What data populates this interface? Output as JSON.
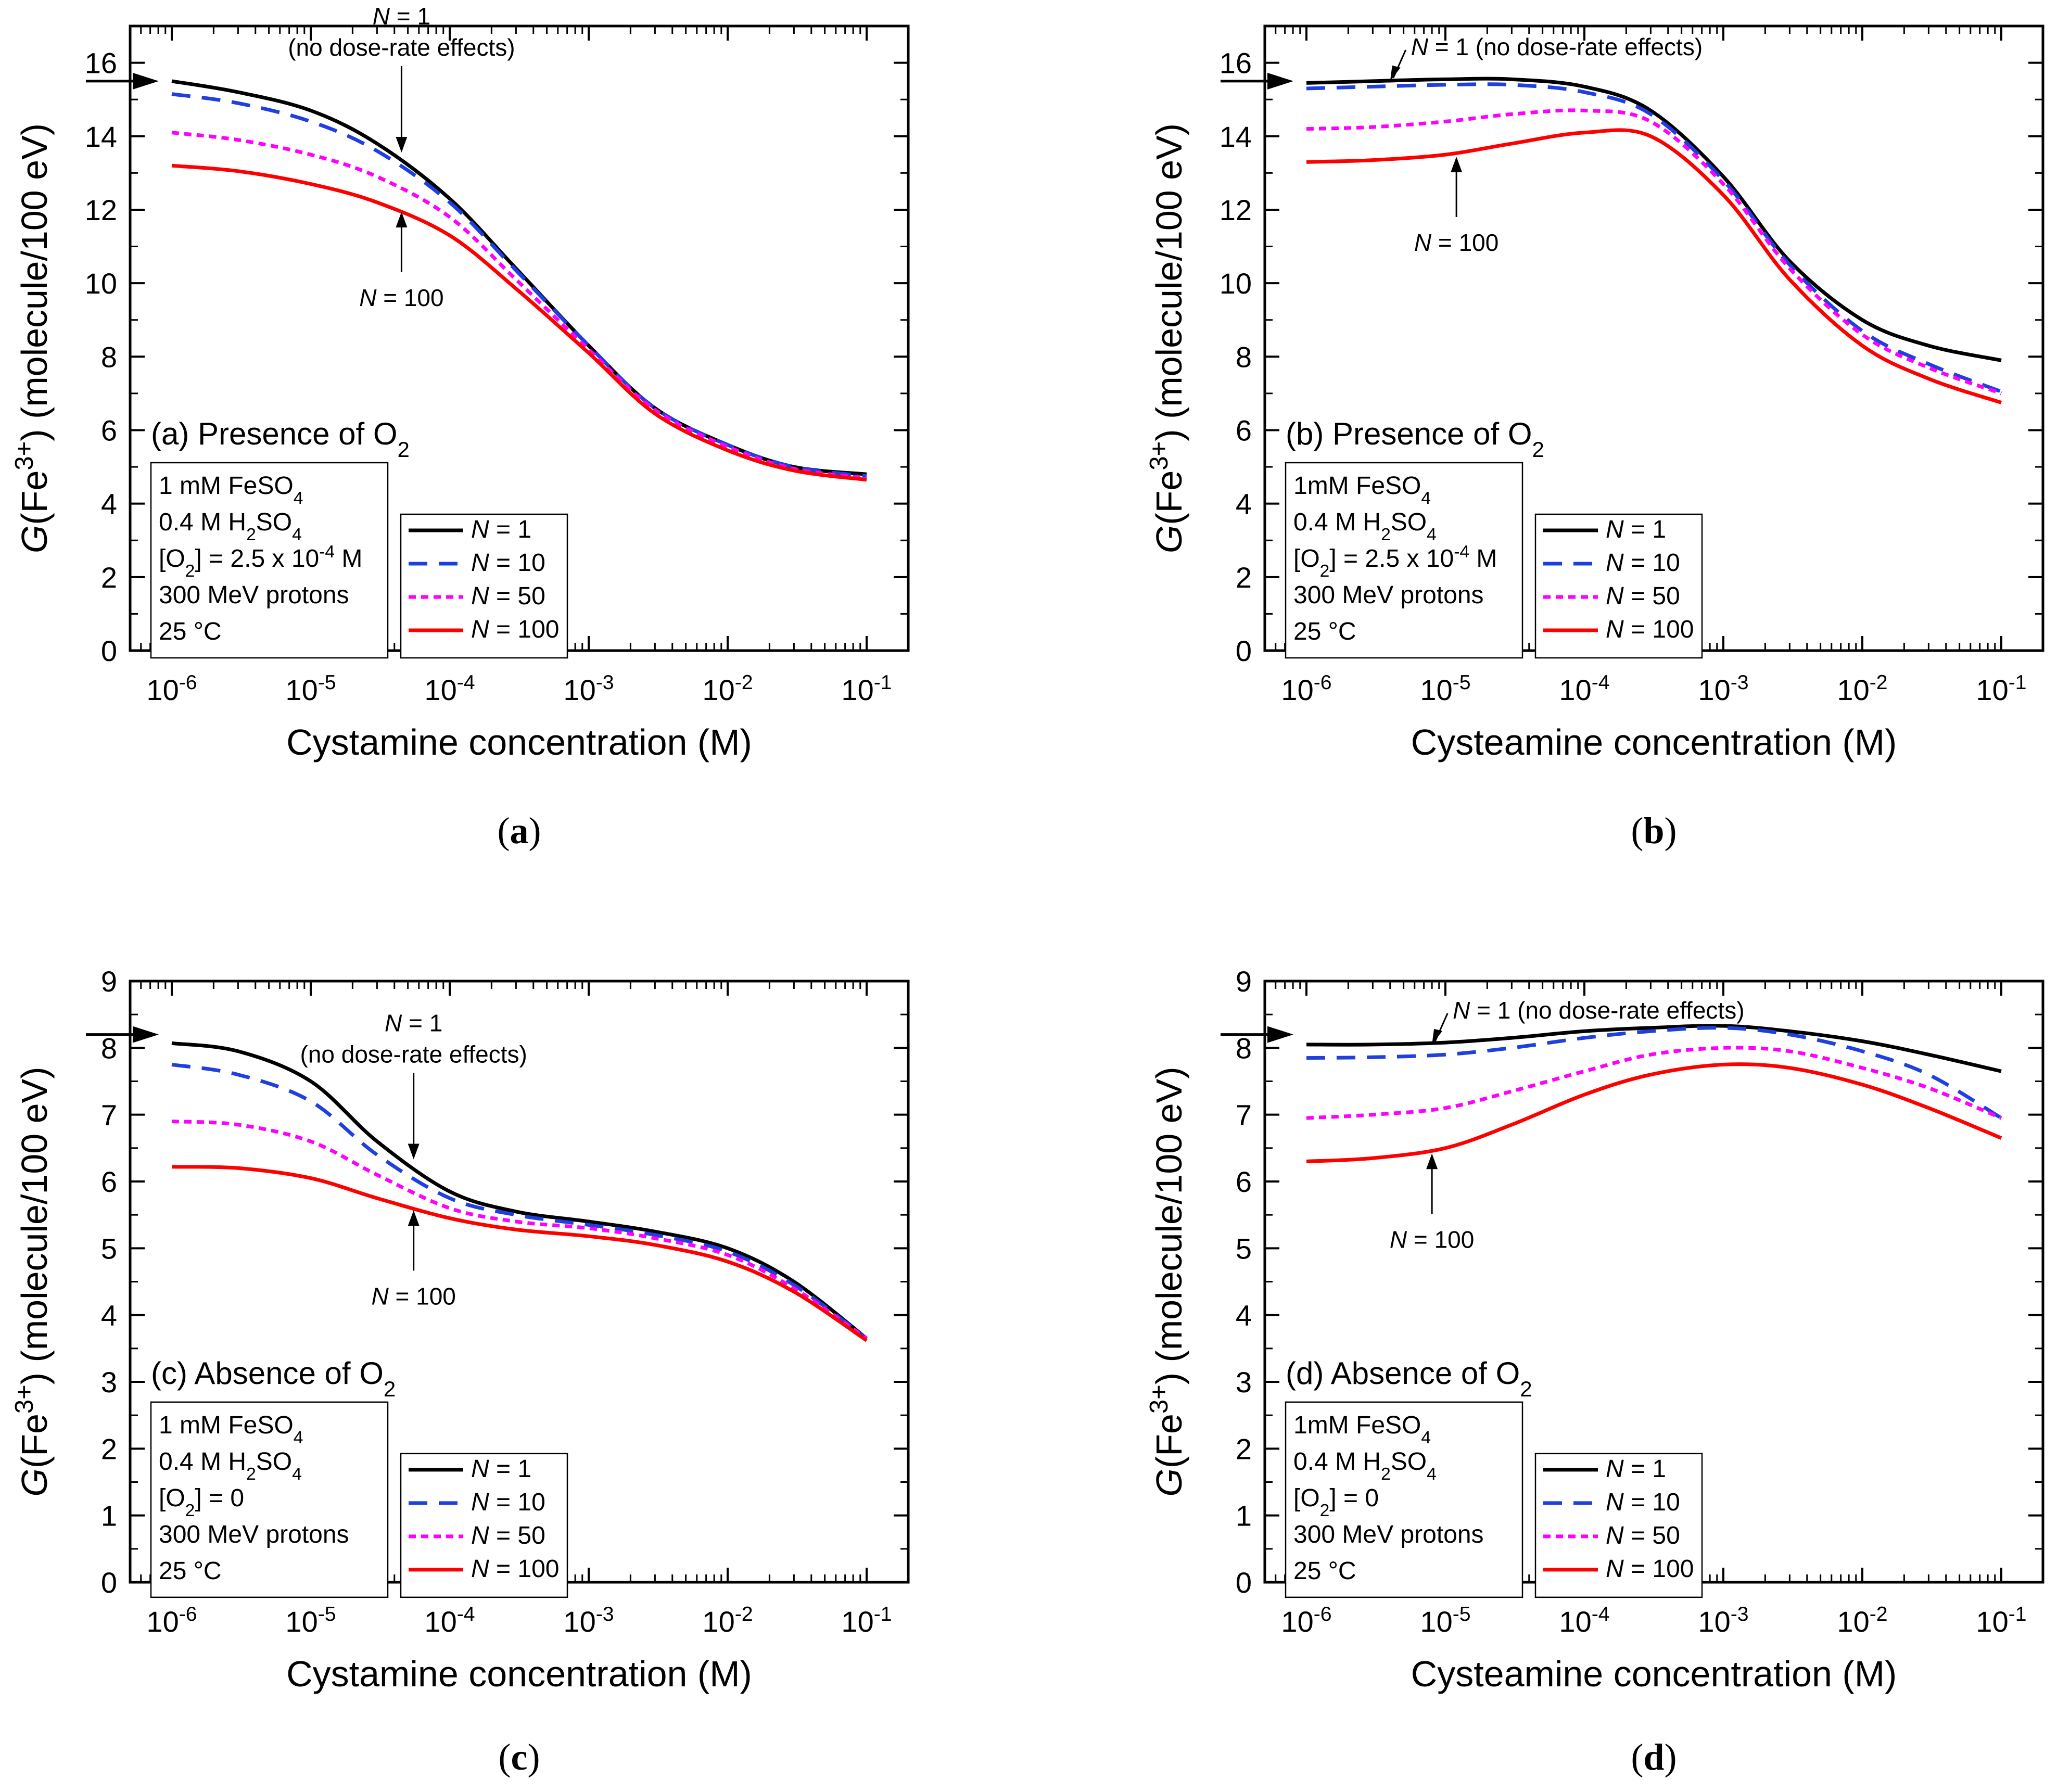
{
  "panels": [
    {
      "id": "a",
      "chart_data": {
        "type": "line",
        "xscale": "log",
        "xlim": [
          1e-06,
          0.1
        ],
        "ylim": [
          0,
          17
        ],
        "yticks": [
          0,
          2,
          4,
          6,
          8,
          10,
          12,
          14,
          16
        ],
        "xlabel": "Cystamine concentration (M)",
        "ylabel": "G(Fe3+) (molecule/100 eV)",
        "caption": "a",
        "panel_label": "(a) Presence of O2",
        "conditions": [
          "1 mM FeSO4",
          "0.4 M H2SO4",
          "[O2] = 2.5 x 10-4 M",
          "300 MeV protons",
          "25 °C"
        ],
        "reference_arrow_y": 15.5,
        "annotations": [
          {
            "text": "N = 1",
            "subtext": "(no dose-rate effects)",
            "x": 4.5e-05,
            "y": 13.5
          },
          {
            "text": "N = 100",
            "x": 4.5e-05,
            "y": 12.0
          }
        ],
        "series": [
          {
            "name": "N = 1",
            "color": "#000000",
            "dash": "solid",
            "x": [
              1e-06,
              3e-06,
              1e-05,
              3e-05,
              0.0001,
              0.0003,
              0.001,
              0.003,
              0.01,
              0.03,
              0.1
            ],
            "y": [
              15.5,
              15.2,
              14.7,
              13.8,
              12.3,
              10.4,
              8.3,
              6.6,
              5.6,
              5.0,
              4.8
            ]
          },
          {
            "name": "N = 10",
            "color": "#1f3fe0",
            "dash": "long",
            "x": [
              1e-06,
              3e-06,
              1e-05,
              3e-05,
              0.0001,
              0.0003,
              0.001,
              0.003,
              0.01,
              0.03,
              0.1
            ],
            "y": [
              15.15,
              14.9,
              14.4,
              13.6,
              12.2,
              10.35,
              8.3,
              6.6,
              5.6,
              5.0,
              4.75
            ]
          },
          {
            "name": "N = 50",
            "color": "#ff00ff",
            "dash": "short",
            "x": [
              1e-06,
              3e-06,
              1e-05,
              3e-05,
              0.0001,
              0.0003,
              0.001,
              0.003,
              0.01,
              0.03,
              0.1
            ],
            "y": [
              14.1,
              13.9,
              13.5,
              12.9,
              11.8,
              10.1,
              8.2,
              6.55,
              5.55,
              4.95,
              4.7
            ]
          },
          {
            "name": "N = 100",
            "color": "#ff0000",
            "dash": "solid",
            "x": [
              1e-06,
              3e-06,
              1e-05,
              3e-05,
              0.0001,
              0.0003,
              0.001,
              0.003,
              0.01,
              0.03,
              0.1
            ],
            "y": [
              13.2,
              13.05,
              12.7,
              12.2,
              11.3,
              9.85,
              8.1,
              6.45,
              5.45,
              4.9,
              4.65
            ]
          }
        ]
      }
    },
    {
      "id": "b",
      "chart_data": {
        "type": "line",
        "xscale": "log",
        "xlim": [
          1e-06,
          0.1
        ],
        "ylim": [
          0,
          17
        ],
        "yticks": [
          0,
          2,
          4,
          6,
          8,
          10,
          12,
          14,
          16
        ],
        "xlabel": "Cysteamine concentration (M)",
        "ylabel": "G(Fe3+) (molecule/100 eV)",
        "caption": "b",
        "panel_label": "(b) Presence of O2",
        "conditions": [
          "1mM FeSO4",
          "0.4 M H2SO4",
          "[O2] = 2.5 x 10-4 M",
          "300 MeV protons",
          "25 °C"
        ],
        "reference_arrow_y": 15.5,
        "annotations": [
          {
            "text": "N = 1 (no dose-rate effects)",
            "x": 4e-06,
            "y": 15.5
          },
          {
            "text": "N = 100",
            "x": 1.2e-05,
            "y": 13.5
          }
        ],
        "series": [
          {
            "name": "N = 1",
            "color": "#000000",
            "dash": "solid",
            "x": [
              1e-06,
              3e-06,
              1e-05,
              3e-05,
              0.0001,
              0.0003,
              0.001,
              0.003,
              0.01,
              0.03,
              0.1
            ],
            "y": [
              15.45,
              15.5,
              15.55,
              15.55,
              15.35,
              14.7,
              12.9,
              10.6,
              9.0,
              8.3,
              7.9
            ]
          },
          {
            "name": "N = 10",
            "color": "#1f3fe0",
            "dash": "long",
            "x": [
              1e-06,
              3e-06,
              1e-05,
              3e-05,
              0.0001,
              0.0003,
              0.001,
              0.003,
              0.01,
              0.03,
              0.1
            ],
            "y": [
              15.3,
              15.35,
              15.4,
              15.4,
              15.2,
              14.6,
              12.8,
              10.5,
              8.7,
              7.8,
              7.05
            ]
          },
          {
            "name": "N = 50",
            "color": "#ff00ff",
            "dash": "short",
            "x": [
              1e-06,
              3e-06,
              1e-05,
              3e-05,
              0.0001,
              0.0003,
              0.001,
              0.003,
              0.01,
              0.03,
              0.1
            ],
            "y": [
              14.2,
              14.25,
              14.4,
              14.6,
              14.7,
              14.4,
              12.7,
              10.4,
              8.6,
              7.7,
              7.0
            ]
          },
          {
            "name": "N = 100",
            "color": "#ff0000",
            "dash": "solid",
            "x": [
              1e-06,
              3e-06,
              1e-05,
              3e-05,
              0.0001,
              0.0003,
              0.001,
              0.003,
              0.01,
              0.03,
              0.1
            ],
            "y": [
              13.3,
              13.35,
              13.5,
              13.8,
              14.1,
              14.0,
              12.4,
              10.1,
              8.3,
              7.4,
              6.75
            ]
          }
        ]
      }
    },
    {
      "id": "c",
      "chart_data": {
        "type": "line",
        "xscale": "log",
        "xlim": [
          1e-06,
          0.1
        ],
        "ylim": [
          0,
          9
        ],
        "yticks": [
          0,
          1,
          2,
          3,
          4,
          5,
          6,
          7,
          8,
          9
        ],
        "xlabel": "Cystamine concentration (M)",
        "ylabel": "G(Fe3+) (molecule/100 eV)",
        "caption": "c",
        "panel_label": "(c) Absence of O2",
        "conditions": [
          "1 mM FeSO4",
          "0.4 M H2SO4",
          "[O2] = 0",
          "300 MeV protons",
          "25 °C"
        ],
        "reference_arrow_y": 8.2,
        "annotations": [
          {
            "text": "N = 1",
            "subtext": "(no dose-rate effects)",
            "x": 5.5e-05,
            "y": 6.3
          },
          {
            "text": "N = 100",
            "x": 5.5e-05,
            "y": 5.6
          }
        ],
        "series": [
          {
            "name": "N = 1",
            "color": "#000000",
            "dash": "solid",
            "x": [
              1e-06,
              3e-06,
              1e-05,
              3e-05,
              0.0001,
              0.0003,
              0.001,
              0.003,
              0.01,
              0.03,
              0.1
            ],
            "y": [
              8.07,
              7.95,
              7.5,
              6.6,
              5.85,
              5.55,
              5.4,
              5.25,
              5.0,
              4.5,
              3.65
            ]
          },
          {
            "name": "N = 10",
            "color": "#1f3fe0",
            "dash": "long",
            "x": [
              1e-06,
              3e-06,
              1e-05,
              3e-05,
              0.0001,
              0.0003,
              0.001,
              0.003,
              0.01,
              0.03,
              0.1
            ],
            "y": [
              7.75,
              7.6,
              7.2,
              6.4,
              5.75,
              5.5,
              5.35,
              5.2,
              4.95,
              4.45,
              3.65
            ]
          },
          {
            "name": "N = 50",
            "color": "#ff00ff",
            "dash": "short",
            "x": [
              1e-06,
              3e-06,
              1e-05,
              3e-05,
              0.0001,
              0.0003,
              0.001,
              0.003,
              0.01,
              0.03,
              0.1
            ],
            "y": [
              6.9,
              6.85,
              6.6,
              6.1,
              5.6,
              5.4,
              5.3,
              5.15,
              4.9,
              4.4,
              3.65
            ]
          },
          {
            "name": "N = 100",
            "color": "#ff0000",
            "dash": "solid",
            "x": [
              1e-06,
              3e-06,
              1e-05,
              3e-05,
              0.0001,
              0.0003,
              0.001,
              0.003,
              0.01,
              0.03,
              0.1
            ],
            "y": [
              6.22,
              6.2,
              6.05,
              5.75,
              5.45,
              5.28,
              5.18,
              5.05,
              4.8,
              4.35,
              3.62
            ]
          }
        ]
      }
    },
    {
      "id": "d",
      "chart_data": {
        "type": "line",
        "xscale": "log",
        "xlim": [
          1e-06,
          0.1
        ],
        "ylim": [
          0,
          9
        ],
        "yticks": [
          0,
          1,
          2,
          3,
          4,
          5,
          6,
          7,
          8,
          9
        ],
        "xlabel": "Cysteamine concentration (M)",
        "ylabel": "G(Fe3+) (molecule/100 eV)",
        "caption": "d",
        "panel_label": "(d) Absence of O2",
        "conditions": [
          "1mM FeSO4",
          "0.4 M H2SO4",
          "[O2] = 0",
          "300 MeV protons",
          "25 °C"
        ],
        "reference_arrow_y": 8.2,
        "annotations": [
          {
            "text": "N = 1 (no dose-rate effects)",
            "x": 8e-06,
            "y": 8.05
          },
          {
            "text": "N = 100",
            "x": 8e-06,
            "y": 6.45
          }
        ],
        "series": [
          {
            "name": "N = 1",
            "color": "#000000",
            "dash": "solid",
            "x": [
              1e-06,
              3e-06,
              1e-05,
              3e-05,
              0.0001,
              0.0003,
              0.001,
              0.003,
              0.01,
              0.03,
              0.1
            ],
            "y": [
              8.05,
              8.05,
              8.08,
              8.15,
              8.25,
              8.3,
              8.33,
              8.25,
              8.1,
              7.9,
              7.65
            ]
          },
          {
            "name": "N = 10",
            "color": "#1f3fe0",
            "dash": "long",
            "x": [
              1e-06,
              3e-06,
              1e-05,
              3e-05,
              0.0001,
              0.0003,
              0.001,
              0.003,
              0.01,
              0.03,
              0.1
            ],
            "y": [
              7.85,
              7.86,
              7.9,
              8.0,
              8.15,
              8.25,
              8.3,
              8.2,
              7.95,
              7.6,
              6.95
            ]
          },
          {
            "name": "N = 50",
            "color": "#ff00ff",
            "dash": "short",
            "x": [
              1e-06,
              3e-06,
              1e-05,
              3e-05,
              0.0001,
              0.0003,
              0.001,
              0.003,
              0.01,
              0.03,
              0.1
            ],
            "y": [
              6.95,
              7.0,
              7.1,
              7.35,
              7.65,
              7.9,
              8.0,
              7.95,
              7.7,
              7.4,
              6.95
            ]
          },
          {
            "name": "N = 100",
            "color": "#ff0000",
            "dash": "solid",
            "x": [
              1e-06,
              3e-06,
              1e-05,
              3e-05,
              0.0001,
              0.0003,
              0.001,
              0.003,
              0.01,
              0.03,
              0.1
            ],
            "y": [
              6.3,
              6.35,
              6.5,
              6.85,
              7.3,
              7.6,
              7.75,
              7.7,
              7.45,
              7.1,
              6.65
            ]
          }
        ]
      }
    }
  ]
}
